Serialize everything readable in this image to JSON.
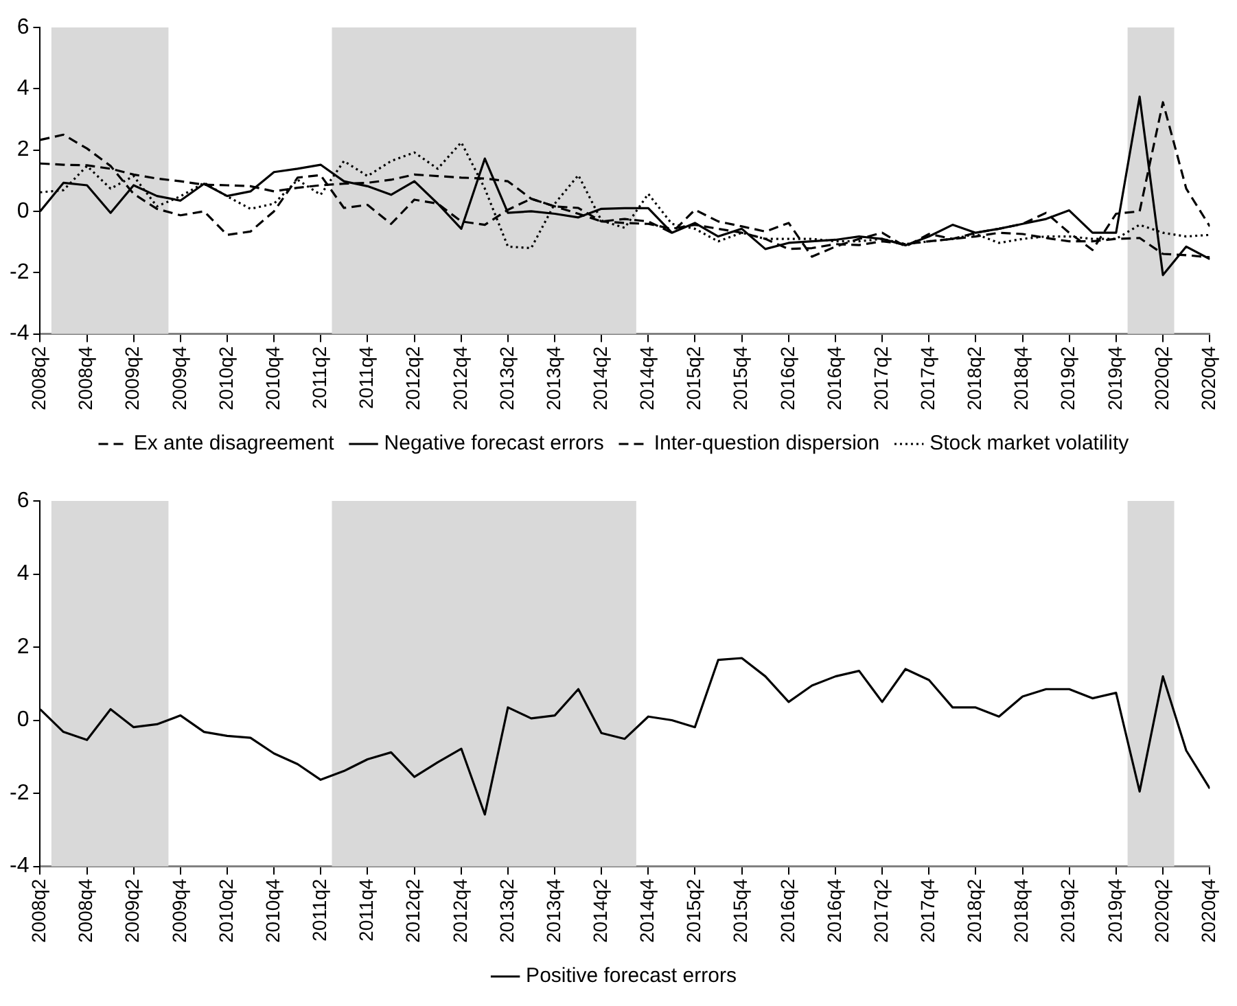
{
  "chart_data": [
    {
      "type": "line",
      "x": [
        "2008-04",
        "2008-07",
        "2008-10",
        "2009-01",
        "2009-04",
        "2009-07",
        "2009-10",
        "2010-01",
        "2010-04",
        "2010-07",
        "2010-10",
        "2011-01",
        "2011-04",
        "2011-07",
        "2011-10",
        "2012-01",
        "2012-04",
        "2012-07",
        "2012-10",
        "2013-01",
        "2013-04",
        "2013-07",
        "2013-10",
        "2014-01",
        "2014-04",
        "2014-07",
        "2014-10",
        "2015-01",
        "2015-04",
        "2015-07",
        "2015-10",
        "2016-01",
        "2016-04",
        "2016-07",
        "2016-10",
        "2017-01",
        "2017-04",
        "2017-07",
        "2017-10",
        "2018-01",
        "2018-04",
        "2018-07",
        "2018-10",
        "2019-01",
        "2019-04",
        "2019-07",
        "2019-10",
        "2020-01",
        "2020-04",
        "2020-07",
        "2020-10"
      ],
      "series": [
        {
          "name": "Ex ante disagreement",
          "color": "#000000",
          "line_style": "dashed",
          "values": [
            1.56,
            1.52,
            1.5,
            1.39,
            1.2,
            1.07,
            0.98,
            0.87,
            0.85,
            0.82,
            0.65,
            0.77,
            0.85,
            0.9,
            0.93,
            1.03,
            1.2,
            1.15,
            1.1,
            1.07,
            0.98,
            0.41,
            0.16,
            0.11,
            -0.33,
            -0.38,
            -0.41,
            -0.57,
            -0.44,
            -0.57,
            -0.7,
            -0.9,
            -1.23,
            -1.2,
            -1.07,
            -1.1,
            -0.98,
            -1.07,
            -0.98,
            -0.9,
            -0.82,
            -0.7,
            -0.74,
            -0.87,
            -0.98,
            -0.98,
            -0.9,
            -0.87,
            -1.39,
            -1.43,
            -1.5
          ]
        },
        {
          "name": "Negative forecast errors",
          "color": "#000000",
          "line_style": "solid",
          "values": [
            0,
            0.93,
            0.85,
            -0.05,
            0.85,
            0.5,
            0.35,
            0.9,
            0.5,
            0.65,
            1.28,
            1.39,
            1.52,
            0.98,
            0.82,
            0.54,
            0.98,
            0.25,
            -0.57,
            1.72,
            -0.05,
            0,
            -0.08,
            -0.2,
            0.08,
            0.1,
            0.1,
            -0.7,
            -0.38,
            -0.82,
            -0.57,
            -1.23,
            -1.03,
            -0.98,
            -0.93,
            -0.82,
            -0.9,
            -1.11,
            -0.82,
            -0.44,
            -0.7,
            -0.57,
            -0.41,
            -0.25,
            0.03,
            -0.7,
            -0.7,
            3.74,
            -2.08,
            -1.15,
            -1.56
          ]
        },
        {
          "name": "Inter-question dispersion",
          "color": "#000000",
          "line_style": "dashed",
          "values": [
            2.33,
            2.5,
            2.05,
            1.48,
            0.57,
            0.08,
            -0.13,
            0,
            -0.77,
            -0.66,
            0,
            1.1,
            1.18,
            0.11,
            0.21,
            -0.41,
            0.38,
            0.25,
            -0.33,
            -0.44,
            0.05,
            0.41,
            0.16,
            -0.08,
            -0.33,
            -0.25,
            -0.33,
            -0.7,
            0.05,
            -0.33,
            -0.49,
            -0.66,
            -0.38,
            -1.48,
            -1.15,
            -0.9,
            -0.7,
            -1.15,
            -0.74,
            -0.9,
            -0.7,
            -0.57,
            -0.41,
            -0.05,
            -0.7,
            -1.26,
            -0.08,
            0,
            3.56,
            0.74,
            -0.49
          ]
        },
        {
          "name": "Stock market volatility",
          "color": "#000000",
          "line_style": "dotted",
          "values": [
            0.62,
            0.69,
            1.48,
            0.74,
            1.15,
            0.16,
            0.49,
            0.93,
            0.49,
            0.08,
            0.25,
            1.03,
            0.54,
            1.64,
            1.15,
            1.64,
            1.92,
            1.39,
            2.25,
            0.74,
            -1.15,
            -1.2,
            0.25,
            1.18,
            -0.3,
            -0.54,
            0.57,
            -0.41,
            -0.57,
            -0.98,
            -0.7,
            -0.9,
            -0.9,
            -0.9,
            -0.98,
            -0.98,
            -0.9,
            -1.07,
            -0.98,
            -0.9,
            -0.74,
            -1.03,
            -0.9,
            -0.82,
            -0.82,
            -0.9,
            -0.9,
            -0.44,
            -0.7,
            -0.82,
            -0.77
          ]
        }
      ],
      "xlim": [
        "2008-04",
        "2020-10"
      ],
      "xticks": [
        {
          "value": "2008-04",
          "label": "2008q2"
        },
        {
          "value": "2008-10",
          "label": "2008q4"
        },
        {
          "value": "2009-04",
          "label": "2009q2"
        },
        {
          "value": "2009-10",
          "label": "2009q4"
        },
        {
          "value": "2010-04",
          "label": "2010q2"
        },
        {
          "value": "2010-10",
          "label": "2010q4"
        },
        {
          "value": "2011-04",
          "label": "2011q2"
        },
        {
          "value": "2011-10",
          "label": "2011q4"
        },
        {
          "value": "2012-04",
          "label": "2012q2"
        },
        {
          "value": "2012-10",
          "label": "2012q4"
        },
        {
          "value": "2013-04",
          "label": "2013q2"
        },
        {
          "value": "2013-10",
          "label": "2013q4"
        },
        {
          "value": "2014-04",
          "label": "2014q2"
        },
        {
          "value": "2014-10",
          "label": "2014q4"
        },
        {
          "value": "2015-04",
          "label": "2015q2"
        },
        {
          "value": "2015-10",
          "label": "2015q4"
        },
        {
          "value": "2016-04",
          "label": "2016q2"
        },
        {
          "value": "2016-10",
          "label": "2016q4"
        },
        {
          "value": "2017-04",
          "label": "2017q2"
        },
        {
          "value": "2017-10",
          "label": "2017q4"
        },
        {
          "value": "2018-04",
          "label": "2018q2"
        },
        {
          "value": "2018-10",
          "label": "2018q4"
        },
        {
          "value": "2019-04",
          "label": "2019q2"
        },
        {
          "value": "2019-10",
          "label": "2019q4"
        },
        {
          "value": "2020-04",
          "label": "2020q2"
        },
        {
          "value": "2020-10",
          "label": "2020q4"
        }
      ],
      "ylim": [
        -4,
        6
      ],
      "yticks": [
        -4,
        -2,
        0,
        2,
        4,
        6
      ],
      "bands": [
        {
          "axis": "x",
          "from": "2008-05-15",
          "to": "2009-08-15",
          "color": "#d9d9d9"
        },
        {
          "axis": "x",
          "from": "2011-05-15",
          "to": "2014-08-15",
          "color": "#d9d9d9"
        },
        {
          "axis": "x",
          "from": "2019-11-15",
          "to": "2020-05-15",
          "color": "#d9d9d9"
        }
      ],
      "grid": false,
      "legend": "bottom"
    },
    {
      "type": "line",
      "x": [
        "2008-04",
        "2008-07",
        "2008-10",
        "2009-01",
        "2009-04",
        "2009-07",
        "2009-10",
        "2010-01",
        "2010-04",
        "2010-07",
        "2010-10",
        "2011-01",
        "2011-04",
        "2011-07",
        "2011-10",
        "2012-01",
        "2012-04",
        "2012-07",
        "2012-10",
        "2013-01",
        "2013-04",
        "2013-07",
        "2013-10",
        "2014-01",
        "2014-04",
        "2014-07",
        "2014-10",
        "2015-01",
        "2015-04",
        "2015-07",
        "2015-10",
        "2016-01",
        "2016-04",
        "2016-07",
        "2016-10",
        "2017-01",
        "2017-04",
        "2017-07",
        "2017-10",
        "2018-01",
        "2018-04",
        "2018-07",
        "2018-10",
        "2019-01",
        "2019-04",
        "2019-07",
        "2019-10",
        "2020-01",
        "2020-04",
        "2020-07",
        "2020-10"
      ],
      "series": [
        {
          "name": "Positive forecast errors",
          "color": "#000000",
          "line_style": "solid",
          "values": [
            0.3,
            -0.32,
            -0.54,
            0.3,
            -0.19,
            -0.11,
            0.13,
            -0.32,
            -0.43,
            -0.48,
            -0.91,
            -1.2,
            -1.63,
            -1.39,
            -1.07,
            -0.88,
            -1.55,
            -1.15,
            -0.78,
            -2.58,
            0.35,
            0.05,
            0.13,
            0.85,
            -0.35,
            -0.51,
            0.1,
            0,
            -0.19,
            1.65,
            1.7,
            1.2,
            0.5,
            0.95,
            1.2,
            1.35,
            0.5,
            1.4,
            1.1,
            0.35,
            0.35,
            0.1,
            0.65,
            0.85,
            0.85,
            0.6,
            0.75,
            -1.95,
            1.2,
            -0.83,
            -1.87
          ]
        }
      ],
      "xlim": [
        "2008-04",
        "2020-10"
      ],
      "xticks": [
        {
          "value": "2008-04",
          "label": "2008q2"
        },
        {
          "value": "2008-10",
          "label": "2008q4"
        },
        {
          "value": "2009-04",
          "label": "2009q2"
        },
        {
          "value": "2009-10",
          "label": "2009q4"
        },
        {
          "value": "2010-04",
          "label": "2010q2"
        },
        {
          "value": "2010-10",
          "label": "2010q4"
        },
        {
          "value": "2011-04",
          "label": "2011q2"
        },
        {
          "value": "2011-10",
          "label": "2011q4"
        },
        {
          "value": "2012-04",
          "label": "2012q2"
        },
        {
          "value": "2012-10",
          "label": "2012q4"
        },
        {
          "value": "2013-04",
          "label": "2013q2"
        },
        {
          "value": "2013-10",
          "label": "2013q4"
        },
        {
          "value": "2014-04",
          "label": "2014q2"
        },
        {
          "value": "2014-10",
          "label": "2014q4"
        },
        {
          "value": "2015-04",
          "label": "2015q2"
        },
        {
          "value": "2015-10",
          "label": "2015q4"
        },
        {
          "value": "2016-04",
          "label": "2016q2"
        },
        {
          "value": "2016-10",
          "label": "2016q4"
        },
        {
          "value": "2017-04",
          "label": "2017q2"
        },
        {
          "value": "2017-10",
          "label": "2017q4"
        },
        {
          "value": "2018-04",
          "label": "2018q2"
        },
        {
          "value": "2018-10",
          "label": "2018q4"
        },
        {
          "value": "2019-04",
          "label": "2019q2"
        },
        {
          "value": "2019-10",
          "label": "2019q4"
        },
        {
          "value": "2020-04",
          "label": "2020q2"
        },
        {
          "value": "2020-10",
          "label": "2020q4"
        }
      ],
      "ylim": [
        -4,
        6
      ],
      "yticks": [
        -4,
        -2,
        0,
        2,
        4,
        6
      ],
      "bands": [
        {
          "axis": "x",
          "from": "2008-05-15",
          "to": "2009-08-15",
          "color": "#d9d9d9"
        },
        {
          "axis": "x",
          "from": "2011-05-15",
          "to": "2014-08-15",
          "color": "#d9d9d9"
        },
        {
          "axis": "x",
          "from": "2019-11-15",
          "to": "2020-05-15",
          "color": "#d9d9d9"
        }
      ],
      "grid": false,
      "legend": "bottom"
    }
  ]
}
